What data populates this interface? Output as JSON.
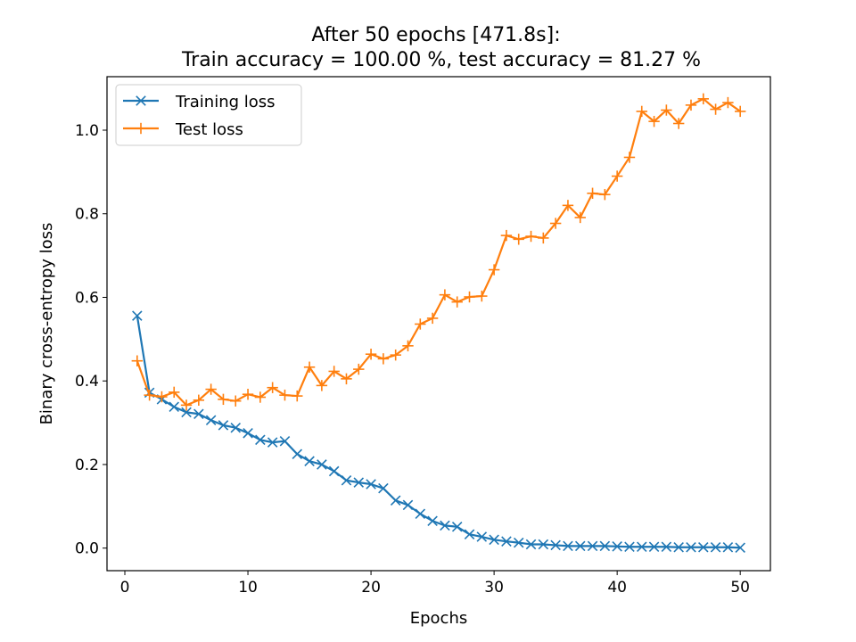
{
  "chart_data": {
    "type": "line",
    "title_line1": "After 50 epochs [471.8s]:",
    "title_line2": "Train accuracy = 100.00 %, test accuracy = 81.27 %",
    "xlabel": "Epochs",
    "ylabel": "Binary cross-entropy loss",
    "xlim": [
      -1.45,
      52.45
    ],
    "ylim": [
      -0.054,
      1.128
    ],
    "xticks": [
      0,
      10,
      20,
      30,
      40,
      50
    ],
    "yticks": [
      0.0,
      0.2,
      0.4,
      0.6,
      0.8,
      1.0
    ],
    "xtick_labels": [
      "0",
      "10",
      "20",
      "30",
      "40",
      "50"
    ],
    "ytick_labels": [
      "0.0",
      "0.2",
      "0.4",
      "0.6",
      "0.8",
      "1.0"
    ],
    "legend_position": "top-left",
    "grid": false,
    "x": [
      1,
      2,
      3,
      4,
      5,
      6,
      7,
      8,
      9,
      10,
      11,
      12,
      13,
      14,
      15,
      16,
      17,
      18,
      19,
      20,
      21,
      22,
      23,
      24,
      25,
      26,
      27,
      28,
      29,
      30,
      31,
      32,
      33,
      34,
      35,
      36,
      37,
      38,
      39,
      40,
      41,
      42,
      43,
      44,
      45,
      46,
      47,
      48,
      49,
      50
    ],
    "series": [
      {
        "name": "Training loss",
        "color": "#1f77b4",
        "marker": "x",
        "values": [
          0.556,
          0.372,
          0.356,
          0.338,
          0.325,
          0.321,
          0.306,
          0.294,
          0.288,
          0.275,
          0.259,
          0.253,
          0.256,
          0.225,
          0.208,
          0.2,
          0.184,
          0.162,
          0.157,
          0.153,
          0.143,
          0.114,
          0.103,
          0.082,
          0.065,
          0.054,
          0.051,
          0.033,
          0.027,
          0.02,
          0.016,
          0.013,
          0.009,
          0.009,
          0.007,
          0.005,
          0.005,
          0.005,
          0.005,
          0.004,
          0.003,
          0.003,
          0.003,
          0.003,
          0.002,
          0.002,
          0.002,
          0.002,
          0.002,
          0.001
        ]
      },
      {
        "name": "Test loss",
        "color": "#ff7f0e",
        "marker": "+",
        "values": [
          0.448,
          0.366,
          0.362,
          0.373,
          0.342,
          0.354,
          0.38,
          0.356,
          0.352,
          0.368,
          0.361,
          0.384,
          0.366,
          0.364,
          0.433,
          0.389,
          0.423,
          0.405,
          0.428,
          0.464,
          0.453,
          0.462,
          0.484,
          0.536,
          0.55,
          0.606,
          0.589,
          0.601,
          0.603,
          0.666,
          0.748,
          0.739,
          0.746,
          0.742,
          0.777,
          0.82,
          0.791,
          0.849,
          0.846,
          0.89,
          0.935,
          1.045,
          1.021,
          1.048,
          1.016,
          1.06,
          1.075,
          1.05,
          1.066,
          1.045
        ]
      }
    ]
  }
}
